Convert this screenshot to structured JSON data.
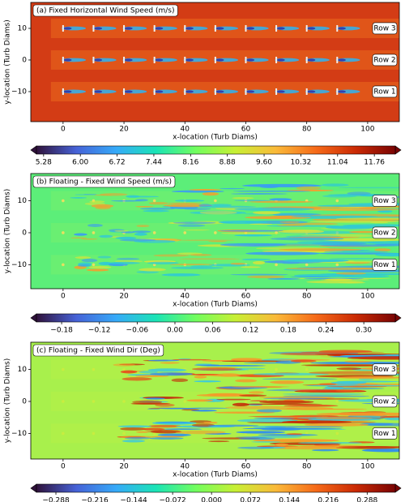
{
  "chart_data": [
    {
      "type": "contour",
      "title": "(a) Fixed Horizontal Wind Speed (m/s)",
      "xlabel": "x-location (Turb Diams)",
      "ylabel": "y-location (Turb Diams)",
      "xlim": [
        -10.6,
        110.4
      ],
      "ylim": [
        -19.5,
        18.2
      ],
      "xticks": [
        0,
        20,
        40,
        60,
        80,
        100
      ],
      "yticks": [
        {
          "value": -10,
          "label": "−10"
        },
        0,
        10
      ],
      "rows": [
        {
          "label": "Row 3",
          "y": 10
        },
        {
          "label": "Row 2",
          "y": 0
        },
        {
          "label": "Row 1",
          "y": -10
        }
      ],
      "turbine_x": [
        0,
        10,
        20,
        30,
        40,
        50,
        60,
        70,
        80,
        90
      ],
      "colorbar": {
        "lim": [
          5.14,
          12.17
        ],
        "colors": [
          "#30123b",
          "#4662d7",
          "#36aaf9",
          "#1ae4b6",
          "#72fe5e",
          "#c8ef34",
          "#faba39",
          "#f66b19",
          "#cb2a04",
          "#7a0403"
        ],
        "ticks": [
          5.28,
          {
            "value": 6,
            "label": "6.00"
          },
          6.72,
          7.44,
          8.16,
          8.88,
          {
            "value": 9.6,
            "label": "9.60"
          },
          10.32,
          11.04,
          11.76
        ]
      }
    },
    {
      "type": "contour",
      "title": "(b) Floating - Fixed Wind Speed (m/s)",
      "xlabel": "x-location (Turb Diams)",
      "ylabel": "y-location (Turb Diams)",
      "xlim": [
        -10.6,
        110.4
      ],
      "ylim": [
        -17.5,
        18.5
      ],
      "xticks": [
        0,
        20,
        40,
        60,
        80,
        100
      ],
      "yticks": [
        {
          "value": -10,
          "label": "−10"
        },
        0,
        10
      ],
      "rows": [
        {
          "label": "Row 3",
          "y": 10
        },
        {
          "label": "Row 2",
          "y": 0
        },
        {
          "label": "Row 1",
          "y": -10
        }
      ],
      "turbine_x": [
        0,
        10,
        20,
        30,
        40,
        50,
        60,
        70,
        80,
        90
      ],
      "colorbar": {
        "lim": [
          -0.22,
          0.35
        ],
        "colors": [
          "#30123b",
          "#4662d7",
          "#36aaf9",
          "#1ae4b6",
          "#72fe5e",
          "#c8ef34",
          "#faba39",
          "#f66b19",
          "#cb2a04",
          "#7a0403"
        ],
        "ticks": [
          {
            "value": -0.18,
            "label": "−0.18"
          },
          {
            "value": -0.12,
            "label": "−0.12"
          },
          {
            "value": -0.06,
            "label": "−0.06"
          },
          {
            "value": 0,
            "label": "0.00"
          },
          0.06,
          0.12,
          0.18,
          0.24,
          {
            "value": 0.3,
            "label": "0.30"
          }
        ]
      }
    },
    {
      "type": "contour",
      "title": "(c) Floating - Fixed Wind Dir (Deg)",
      "xlabel": "x-location (Turb Diams)",
      "ylabel": "y-location (Turb Diams)",
      "xlim": [
        -10.6,
        110.4
      ],
      "ylim": [
        -18,
        18.5
      ],
      "xticks": [
        0,
        20,
        40,
        60,
        80,
        100
      ],
      "yticks": [
        {
          "value": -10,
          "label": "−10"
        },
        0,
        10
      ],
      "rows": [
        {
          "label": "Row 3",
          "y": 10
        },
        {
          "label": "Row 2",
          "y": 0
        },
        {
          "label": "Row 1",
          "y": -10
        }
      ],
      "turbine_x": [
        0,
        10,
        20,
        30,
        40,
        50,
        60,
        70,
        80,
        90
      ],
      "colorbar": {
        "lim": [
          -0.324,
          0.34
        ],
        "colors": [
          "#30123b",
          "#4662d7",
          "#36aaf9",
          "#1ae4b6",
          "#72fe5e",
          "#c8ef34",
          "#faba39",
          "#f66b19",
          "#cb2a04",
          "#7a0403"
        ],
        "ticks": [
          {
            "value": -0.288,
            "label": "−0.288"
          },
          {
            "value": -0.216,
            "label": "−0.216"
          },
          {
            "value": -0.144,
            "label": "−0.144"
          },
          {
            "value": -0.072,
            "label": "−0.072"
          },
          {
            "value": 0,
            "label": "0.000"
          },
          0.072,
          0.144,
          0.216,
          0.288
        ]
      }
    }
  ]
}
